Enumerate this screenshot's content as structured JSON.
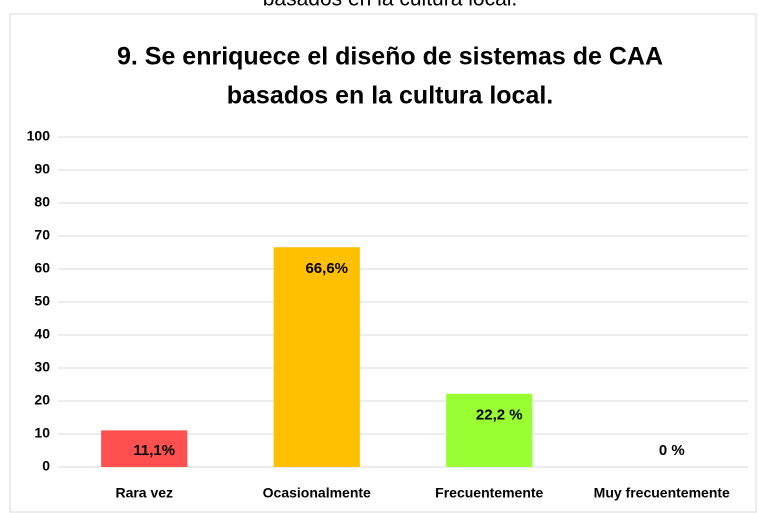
{
  "header_fragment": "basados en la cultura local.",
  "chart_data": {
    "type": "bar",
    "title": [
      "9. Se enriquece el diseño de sistemas de CAA",
      "basados en la cultura local."
    ],
    "categories": [
      "Rara vez",
      "Ocasionalmente",
      "Frecuentemente",
      "Muy frecuentemente"
    ],
    "values": [
      11.1,
      66.6,
      22.2,
      0
    ],
    "value_labels": [
      "11,1%",
      "66,6%",
      "22,2 %",
      "0 %"
    ],
    "colors": [
      "#ff5050",
      "#ffc000",
      "#99ff33",
      "#a5a5a5"
    ],
    "ylim": [
      0,
      100
    ],
    "yticks": [
      0,
      10,
      20,
      30,
      40,
      50,
      60,
      70,
      80,
      90,
      100
    ],
    "grid": true
  }
}
